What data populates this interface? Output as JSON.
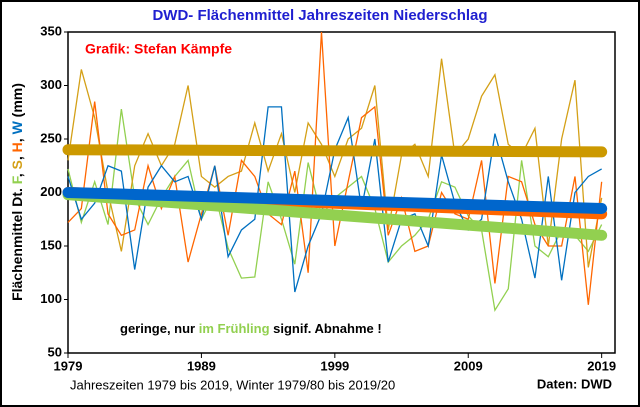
{
  "chart_data": {
    "type": "line",
    "title": "DWD- Flächenmittel Jahreszeiten Niederschlag",
    "credit": "Grafik: Stefan Kämpfe",
    "annotation_parts": [
      {
        "text": "geringe, nur ",
        "color": "#000000"
      },
      {
        "text": "im Frühling",
        "color": "#92d050"
      },
      {
        "text": " signif. Abnahme !",
        "color": "#000000"
      }
    ],
    "ylabel_parts": [
      {
        "text": "Flächenmittel Dt. ",
        "color": "#000000"
      },
      {
        "text": "F",
        "color": "#92d050"
      },
      {
        "text": ", ",
        "color": "#000000"
      },
      {
        "text": "S",
        "color": "#d4a017"
      },
      {
        "text": ", ",
        "color": "#000000"
      },
      {
        "text": "H",
        "color": "#ff6600"
      },
      {
        "text": ", ",
        "color": "#000000"
      },
      {
        "text": "W",
        "color": "#0070c0"
      },
      {
        "text": " (mm)",
        "color": "#000000"
      }
    ],
    "xlabel": "Jahreszeiten 1979 bis 2019, Winter 1979/80 bis 2019/20",
    "source": "Daten: DWD",
    "x": [
      1979,
      1980,
      1981,
      1982,
      1983,
      1984,
      1985,
      1986,
      1987,
      1988,
      1989,
      1990,
      1991,
      1992,
      1993,
      1994,
      1995,
      1996,
      1997,
      1998,
      1999,
      2000,
      2001,
      2002,
      2003,
      2004,
      2005,
      2006,
      2007,
      2008,
      2009,
      2010,
      2011,
      2012,
      2013,
      2014,
      2015,
      2016,
      2017,
      2018,
      2019
    ],
    "xlim": [
      1979,
      2020
    ],
    "xticks": [
      1979,
      1989,
      1999,
      2009,
      2019
    ],
    "ylim": [
      50,
      350
    ],
    "yticks": [
      50,
      100,
      150,
      200,
      250,
      300,
      350
    ],
    "grid": false,
    "series": [
      {
        "name": "Frühling",
        "color": "#92d050",
        "trend_color": "#92d050",
        "values": [
          222,
          172,
          210,
          170,
          278,
          195,
          170,
          195,
          215,
          230,
          175,
          200,
          148,
          120,
          121,
          210,
          175,
          133,
          228,
          178,
          195,
          205,
          215,
          185,
          135,
          150,
          160,
          175,
          210,
          205,
          178,
          165,
          90,
          110,
          230,
          150,
          140,
          165,
          160,
          145,
          170
        ],
        "trend": [
          198,
          160
        ]
      },
      {
        "name": "Sommer",
        "color": "#d4a017",
        "trend_color": "#cc9900",
        "values": [
          230,
          315,
          270,
          200,
          145,
          225,
          255,
          225,
          245,
          300,
          215,
          205,
          215,
          220,
          265,
          220,
          255,
          200,
          265,
          245,
          215,
          250,
          260,
          300,
          165,
          235,
          245,
          215,
          325,
          235,
          250,
          290,
          310,
          245,
          235,
          260,
          150,
          250,
          305,
          130,
          195
        ],
        "trend": [
          240,
          238
        ]
      },
      {
        "name": "Herbst",
        "color": "#ff6600",
        "trend_color": "#ff6600",
        "values": [
          172,
          185,
          285,
          180,
          160,
          165,
          225,
          185,
          215,
          135,
          180,
          225,
          160,
          230,
          215,
          180,
          170,
          220,
          125,
          350,
          150,
          210,
          270,
          280,
          160,
          195,
          145,
          150,
          200,
          180,
          175,
          230,
          115,
          215,
          210,
          170,
          150,
          150,
          215,
          95,
          210
        ],
        "trend": [
          200,
          180
        ]
      },
      {
        "name": "Winter",
        "color": "#0070c0",
        "trend_color": "#0066cc",
        "values": [
          215,
          175,
          190,
          225,
          220,
          128,
          205,
          225,
          210,
          215,
          175,
          225,
          140,
          165,
          175,
          280,
          280,
          107,
          150,
          180,
          240,
          270,
          185,
          250,
          135,
          175,
          180,
          150,
          235,
          190,
          165,
          175,
          255,
          210,
          175,
          120,
          215,
          118,
          200,
          215,
          222
        ],
        "trend": [
          200,
          185
        ]
      }
    ]
  }
}
